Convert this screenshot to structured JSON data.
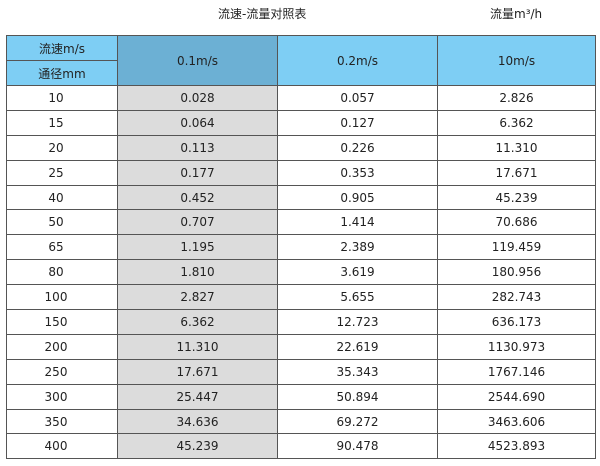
{
  "title": "流速-流量对照表",
  "unit_label": "流量m³/h",
  "header": {
    "velocity_label": "流速m/s",
    "diameter_label": "通径mm",
    "columns": [
      "0.1m/s",
      "0.2m/s",
      "10m/s"
    ]
  },
  "colors": {
    "header_bg": "#7ecef4",
    "selected_header_bg": "#6cb0d4",
    "shaded_column_bg": "#dcdcdc"
  },
  "rows": [
    {
      "dn": "10",
      "values": [
        "0.028",
        "0.057",
        "2.826"
      ]
    },
    {
      "dn": "15",
      "values": [
        "0.064",
        "0.127",
        "6.362"
      ]
    },
    {
      "dn": "20",
      "values": [
        "0.113",
        "0.226",
        "11.310"
      ]
    },
    {
      "dn": "25",
      "values": [
        "0.177",
        "0.353",
        "17.671"
      ]
    },
    {
      "dn": "40",
      "values": [
        "0.452",
        "0.905",
        "45.239"
      ]
    },
    {
      "dn": "50",
      "values": [
        "0.707",
        "1.414",
        "70.686"
      ]
    },
    {
      "dn": "65",
      "values": [
        "1.195",
        "2.389",
        "119.459"
      ]
    },
    {
      "dn": "80",
      "values": [
        "1.810",
        "3.619",
        "180.956"
      ]
    },
    {
      "dn": "100",
      "values": [
        "2.827",
        "5.655",
        "282.743"
      ]
    },
    {
      "dn": "150",
      "values": [
        "6.362",
        "12.723",
        "636.173"
      ]
    },
    {
      "dn": "200",
      "values": [
        "11.310",
        "22.619",
        "1130.973"
      ]
    },
    {
      "dn": "250",
      "values": [
        "17.671",
        "35.343",
        "1767.146"
      ]
    },
    {
      "dn": "300",
      "values": [
        "25.447",
        "50.894",
        "2544.690"
      ]
    },
    {
      "dn": "350",
      "values": [
        "34.636",
        "69.272",
        "3463.606"
      ]
    },
    {
      "dn": "400",
      "values": [
        "45.239",
        "90.478",
        "4523.893"
      ]
    }
  ]
}
